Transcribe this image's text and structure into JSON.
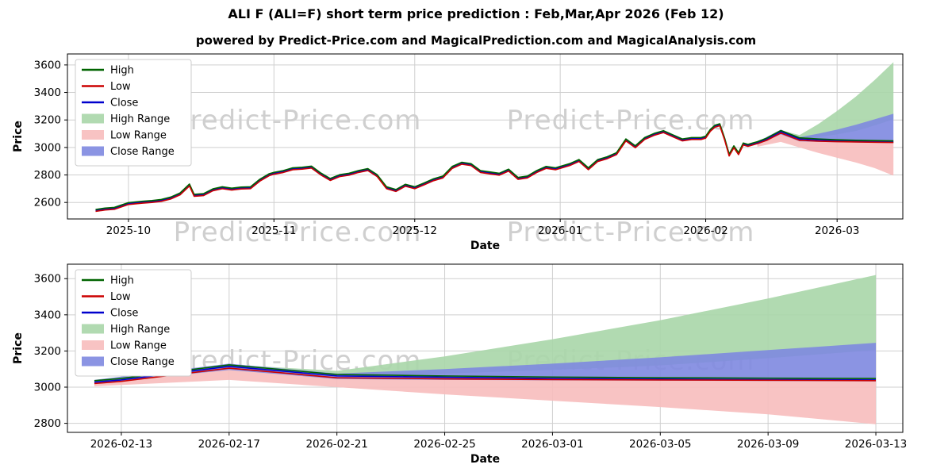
{
  "title": "ALI F (ALI=F) short term price prediction : Feb,Mar,Apr 2026 (Feb 12)",
  "subtitle": "powered by Predict-Price.com and MagicalPrediction.com and MagicalAnalysis.com",
  "watermark": {
    "text": "Predict-Price.com",
    "color": "#cfcfcf"
  },
  "legend": [
    "High",
    "Low",
    "Close",
    "High Range",
    "Low Range",
    "Close Range"
  ],
  "colors": {
    "high": "#006400",
    "low": "#cc0000",
    "close": "#0000cd",
    "high_range": "#a9d6a9",
    "low_range": "#f7bdbd",
    "close_range": "#7e88e0",
    "grid": "#cfcfcf",
    "frame": "#000000"
  },
  "chart_data": [
    {
      "type": "line",
      "name": "full-history-and-forecast",
      "xlabel": "Date",
      "ylabel": "Price",
      "x_unit": "days since 2025-09-18",
      "xlim": [
        0,
        178
      ],
      "ylim": [
        2480,
        3680
      ],
      "yticks": [
        2600,
        2800,
        3000,
        3200,
        3400,
        3600
      ],
      "xticks": [
        {
          "v": 13,
          "label": "2025-10"
        },
        {
          "v": 44,
          "label": "2025-11"
        },
        {
          "v": 74,
          "label": "2025-12"
        },
        {
          "v": 105,
          "label": "2026-01"
        },
        {
          "v": 136,
          "label": "2026-02"
        },
        {
          "v": 164,
          "label": "2026-03"
        }
      ],
      "series": [
        {
          "name": "High",
          "color": "#006400",
          "x": [
            6,
            8,
            10,
            13,
            16,
            18,
            20,
            22,
            24,
            26,
            27,
            29,
            31,
            33,
            35,
            37,
            39,
            41,
            43,
            44,
            46,
            48,
            50,
            52,
            54,
            56,
            58,
            60,
            62,
            64,
            66,
            68,
            70,
            72,
            74,
            76,
            78,
            80,
            82,
            84,
            86,
            88,
            90,
            92,
            94,
            96,
            98,
            100,
            102,
            104,
            105,
            107,
            109,
            111,
            113,
            115,
            117,
            119,
            121,
            123,
            125,
            127,
            129,
            131,
            133,
            135,
            136,
            137,
            138,
            139,
            140,
            141,
            142,
            143,
            144,
            145,
            146,
            147,
            149,
            152,
            156,
            160,
            164,
            168,
            172,
            176
          ],
          "y": [
            2549,
            2559,
            2564,
            2599,
            2609,
            2614,
            2622,
            2639,
            2669,
            2734,
            2659,
            2664,
            2699,
            2714,
            2704,
            2712,
            2714,
            2769,
            2809,
            2819,
            2832,
            2852,
            2856,
            2864,
            2814,
            2774,
            2802,
            2812,
            2832,
            2846,
            2802,
            2714,
            2694,
            2732,
            2714,
            2742,
            2772,
            2792,
            2862,
            2892,
            2882,
            2832,
            2822,
            2812,
            2842,
            2782,
            2792,
            2832,
            2862,
            2852,
            2862,
            2882,
            2912,
            2852,
            2912,
            2932,
            2962,
            3062,
            3012,
            3072,
            3102,
            3122,
            3092,
            3062,
            3072,
            3072,
            3082,
            3132,
            3162,
            3172,
            3072,
            2952,
            3012,
            2962,
            3032,
            3022,
            3032,
            3042,
            3068,
            3123,
            3070,
            3062,
            3056,
            3052,
            3050,
            3048
          ]
        },
        {
          "name": "Low",
          "color": "#cc0000",
          "x": [
            6,
            8,
            10,
            13,
            16,
            18,
            20,
            22,
            24,
            26,
            27,
            29,
            31,
            33,
            35,
            37,
            39,
            41,
            43,
            44,
            46,
            48,
            50,
            52,
            54,
            56,
            58,
            60,
            62,
            64,
            66,
            68,
            70,
            72,
            74,
            76,
            78,
            80,
            82,
            84,
            86,
            88,
            90,
            92,
            94,
            96,
            98,
            100,
            102,
            104,
            105,
            107,
            109,
            111,
            113,
            115,
            117,
            119,
            121,
            123,
            125,
            127,
            129,
            131,
            133,
            135,
            136,
            137,
            138,
            139,
            140,
            141,
            142,
            143,
            144,
            145,
            146,
            147,
            149,
            152,
            156,
            160,
            164,
            168,
            172,
            176
          ],
          "y": [
            2535,
            2545,
            2550,
            2585,
            2595,
            2600,
            2608,
            2625,
            2655,
            2720,
            2645,
            2650,
            2685,
            2700,
            2690,
            2698,
            2700,
            2755,
            2795,
            2805,
            2818,
            2838,
            2842,
            2850,
            2800,
            2760,
            2788,
            2798,
            2818,
            2832,
            2788,
            2700,
            2680,
            2718,
            2700,
            2728,
            2758,
            2778,
            2848,
            2878,
            2868,
            2818,
            2808,
            2798,
            2828,
            2768,
            2778,
            2818,
            2848,
            2838,
            2848,
            2868,
            2898,
            2838,
            2898,
            2918,
            2948,
            3048,
            2998,
            3058,
            3088,
            3108,
            3078,
            3048,
            3058,
            3058,
            3068,
            3118,
            3148,
            3158,
            3058,
            2938,
            2998,
            2948,
            3018,
            3008,
            3018,
            3028,
            3052,
            3105,
            3052,
            3046,
            3042,
            3040,
            3038,
            3036
          ]
        },
        {
          "name": "Close",
          "color": "#0000cd",
          "x": [
            6,
            8,
            10,
            13,
            16,
            18,
            20,
            22,
            24,
            26,
            27,
            29,
            31,
            33,
            35,
            37,
            39,
            41,
            43,
            44,
            46,
            48,
            50,
            52,
            54,
            56,
            58,
            60,
            62,
            64,
            66,
            68,
            70,
            72,
            74,
            76,
            78,
            80,
            82,
            84,
            86,
            88,
            90,
            92,
            94,
            96,
            98,
            100,
            102,
            104,
            105,
            107,
            109,
            111,
            113,
            115,
            117,
            119,
            121,
            123,
            125,
            127,
            129,
            131,
            133,
            135,
            136,
            137,
            138,
            139,
            140,
            141,
            142,
            143,
            144,
            145,
            146,
            147,
            149,
            152,
            156,
            160,
            164,
            168,
            172,
            176
          ],
          "y": [
            2542,
            2552,
            2557,
            2592,
            2602,
            2607,
            2615,
            2632,
            2662,
            2727,
            2652,
            2657,
            2692,
            2707,
            2697,
            2705,
            2707,
            2762,
            2802,
            2812,
            2825,
            2845,
            2849,
            2857,
            2807,
            2767,
            2795,
            2805,
            2825,
            2839,
            2795,
            2707,
            2687,
            2725,
            2707,
            2735,
            2765,
            2785,
            2855,
            2885,
            2875,
            2825,
            2815,
            2805,
            2835,
            2775,
            2785,
            2825,
            2855,
            2845,
            2855,
            2875,
            2905,
            2845,
            2905,
            2925,
            2955,
            3055,
            3005,
            3065,
            3095,
            3115,
            3085,
            3055,
            3065,
            3065,
            3075,
            3125,
            3155,
            3165,
            3065,
            2945,
            3005,
            2955,
            3025,
            3015,
            3025,
            3035,
            3060,
            3115,
            3062,
            3055,
            3048,
            3045,
            3042,
            3040
          ]
        }
      ],
      "bands": [
        {
          "name": "High Range",
          "color": "#a9d6a9",
          "x": [
            147,
            152,
            156,
            160,
            164,
            168,
            172,
            176
          ],
          "upper": [
            3035,
            3125,
            3090,
            3170,
            3265,
            3370,
            3490,
            3620
          ],
          "lower": [
            3025,
            3100,
            3060,
            3075,
            3095,
            3120,
            3160,
            3205
          ]
        },
        {
          "name": "Low Range",
          "color": "#f7bdbd",
          "x": [
            147,
            152,
            156,
            160,
            164,
            168,
            172,
            176
          ],
          "upper": [
            3030,
            3110,
            3055,
            3048,
            3044,
            3040,
            3038,
            3035
          ],
          "lower": [
            3005,
            3040,
            3000,
            2960,
            2925,
            2890,
            2850,
            2795
          ]
        },
        {
          "name": "Close Range",
          "color": "#7e88e0",
          "x": [
            147,
            152,
            156,
            160,
            164,
            168,
            172,
            176
          ],
          "upper": [
            3040,
            3130,
            3075,
            3100,
            3130,
            3165,
            3205,
            3245
          ],
          "lower": [
            3020,
            3095,
            3045,
            3040,
            3038,
            3036,
            3034,
            3032
          ]
        }
      ]
    },
    {
      "type": "line",
      "name": "forecast-detail",
      "xlabel": "Date",
      "ylabel": "Price",
      "x_unit": "days since 2026-02-11",
      "xlim": [
        0,
        31
      ],
      "ylim": [
        2750,
        3680
      ],
      "yticks": [
        2800,
        3000,
        3200,
        3400,
        3600
      ],
      "xticks": [
        {
          "v": 2,
          "label": "2026-02-13"
        },
        {
          "v": 6,
          "label": "2026-02-17"
        },
        {
          "v": 10,
          "label": "2026-02-21"
        },
        {
          "v": 14,
          "label": "2026-02-25"
        },
        {
          "v": 18,
          "label": "2026-03-01"
        },
        {
          "v": 22,
          "label": "2026-03-05"
        },
        {
          "v": 26,
          "label": "2026-03-09"
        },
        {
          "v": 30,
          "label": "2026-03-13"
        }
      ],
      "series": [
        {
          "name": "High",
          "color": "#006400",
          "x": [
            1,
            2,
            6,
            10,
            14,
            18,
            22,
            26,
            30
          ],
          "y": [
            3036,
            3048,
            3123,
            3070,
            3062,
            3056,
            3052,
            3050,
            3048
          ]
        },
        {
          "name": "Low",
          "color": "#cc0000",
          "x": [
            1,
            2,
            6,
            10,
            14,
            18,
            22,
            26,
            30
          ],
          "y": [
            3020,
            3032,
            3105,
            3052,
            3046,
            3042,
            3040,
            3038,
            3036
          ]
        },
        {
          "name": "Close",
          "color": "#0000cd",
          "x": [
            1,
            2,
            6,
            10,
            14,
            18,
            22,
            26,
            30
          ],
          "y": [
            3028,
            3040,
            3115,
            3062,
            3055,
            3048,
            3045,
            3042,
            3040
          ]
        }
      ],
      "bands": [
        {
          "name": "High Range",
          "color": "#a9d6a9",
          "x": [
            1,
            6,
            10,
            14,
            18,
            22,
            26,
            30
          ],
          "upper": [
            3035,
            3125,
            3090,
            3170,
            3265,
            3370,
            3490,
            3620
          ],
          "lower": [
            3025,
            3100,
            3060,
            3075,
            3095,
            3120,
            3160,
            3205
          ]
        },
        {
          "name": "Low Range",
          "color": "#f7bdbd",
          "x": [
            1,
            6,
            10,
            14,
            18,
            22,
            26,
            30
          ],
          "upper": [
            3030,
            3110,
            3055,
            3048,
            3044,
            3040,
            3038,
            3035
          ],
          "lower": [
            3005,
            3040,
            3000,
            2960,
            2925,
            2890,
            2850,
            2795
          ]
        },
        {
          "name": "Close Range",
          "color": "#7e88e0",
          "x": [
            1,
            6,
            10,
            14,
            18,
            22,
            26,
            30
          ],
          "upper": [
            3040,
            3130,
            3075,
            3100,
            3130,
            3165,
            3205,
            3245
          ],
          "lower": [
            3020,
            3095,
            3045,
            3040,
            3038,
            3036,
            3034,
            3032
          ]
        }
      ]
    }
  ]
}
